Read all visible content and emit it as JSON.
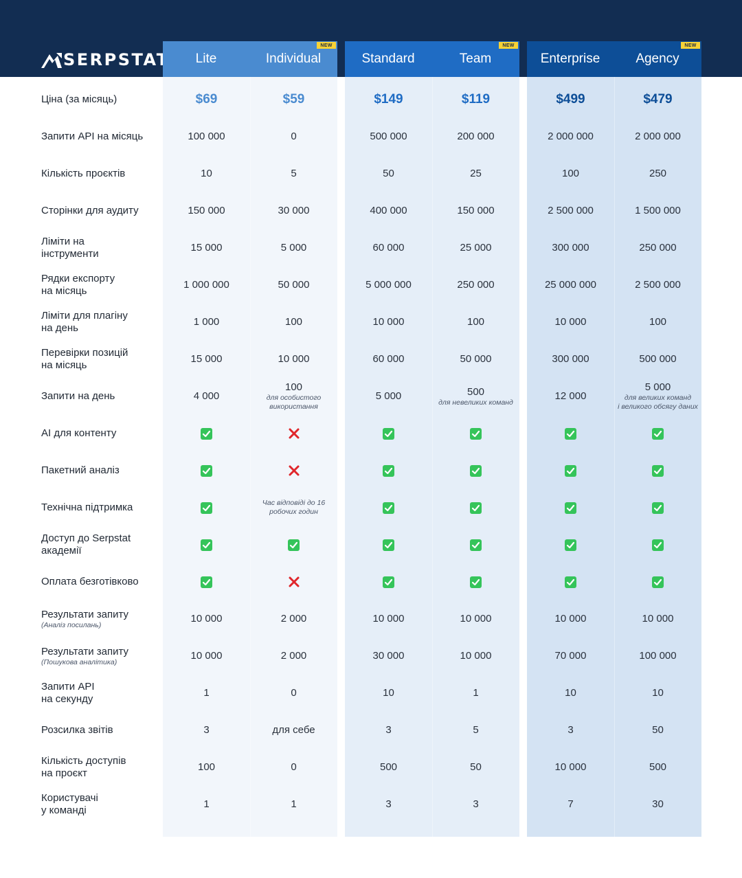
{
  "brand": {
    "name": "SERPSTAT"
  },
  "colors": {
    "header_bg": "#122d52",
    "lite_head": "#4a8bd0",
    "standard_head": "#1f6cc4",
    "enterprise_head": "#0d4e97",
    "price_lite": "#4a8bd0",
    "price_standard": "#1f6cc4",
    "price_enterprise": "#0d4e97",
    "badge": "#f7d235",
    "check": "#35c45a",
    "cross": "#e0262b"
  },
  "plans": [
    {
      "name": "Lite",
      "new": false
    },
    {
      "name": "Individual",
      "new": true
    },
    {
      "name": "Standard",
      "new": false
    },
    {
      "name": "Team",
      "new": true
    },
    {
      "name": "Enterprise",
      "new": false
    },
    {
      "name": "Agency",
      "new": true
    }
  ],
  "badge_label": "NEW",
  "rows": [
    {
      "label": "Ціна (за місяць)",
      "values": [
        "$69",
        "$59",
        "$149",
        "$119",
        "$499",
        "$479"
      ],
      "type": "price"
    },
    {
      "label": "Запити API на місяць",
      "values": [
        "100 000",
        "0",
        "500 000",
        "200 000",
        "2 000 000",
        "2 000 000"
      ]
    },
    {
      "label": "Кількість проєктів",
      "values": [
        "10",
        "5",
        "50",
        "25",
        "100",
        "250"
      ]
    },
    {
      "label": "Сторінки для аудиту",
      "values": [
        "150 000",
        "30 000",
        "400 000",
        "150 000",
        "2 500 000",
        "1 500 000"
      ]
    },
    {
      "label": "Ліміти на\nінструменти",
      "values": [
        "15 000",
        "5 000",
        "60 000",
        "25 000",
        "300 000",
        "250 000"
      ]
    },
    {
      "label": "Рядки експорту\nна місяць",
      "values": [
        "1 000 000",
        "50 000",
        "5 000 000",
        "250 000",
        "25 000 000",
        "2 500 000"
      ]
    },
    {
      "label": "Ліміти для плагіну\nна день",
      "values": [
        "1 000",
        "100",
        "10 000",
        "100",
        "10 000",
        "100"
      ]
    },
    {
      "label": "Перевірки позицій\nна місяць",
      "values": [
        "15 000",
        "10 000",
        "60 000",
        "50 000",
        "300 000",
        "500 000"
      ]
    },
    {
      "label": "Запити на день",
      "values": [
        "4 000",
        "100",
        "5 000",
        "500",
        "12 000",
        "5 000"
      ],
      "notes": [
        "",
        "для особистого\nвикористання",
        "",
        "для невеликих команд",
        "",
        "для великих команд\nі великого обсягу даних"
      ]
    },
    {
      "label": "AI для контенту",
      "values": [
        "yes",
        "no",
        "yes",
        "yes",
        "yes",
        "yes"
      ],
      "type": "bool"
    },
    {
      "label": "Пакетний аналіз",
      "values": [
        "yes",
        "no",
        "yes",
        "yes",
        "yes",
        "yes"
      ],
      "type": "bool"
    },
    {
      "label": "Технічна підтримка",
      "values": [
        "yes",
        "Час відповіді до 16\nробочих годин",
        "yes",
        "yes",
        "yes",
        "yes"
      ],
      "type": "bool"
    },
    {
      "label": "Доступ до Serpstat\nакадемії",
      "values": [
        "yes",
        "yes",
        "yes",
        "yes",
        "yes",
        "yes"
      ],
      "type": "bool"
    },
    {
      "label": "Оплата безготівково",
      "values": [
        "yes",
        "no",
        "yes",
        "yes",
        "yes",
        "yes"
      ],
      "type": "bool"
    },
    {
      "label": "Результати запиту",
      "sublabel": "(Аналіз посилань)",
      "values": [
        "10 000",
        "2 000",
        "10 000",
        "10 000",
        "10 000",
        "10 000"
      ]
    },
    {
      "label": "Результати запиту",
      "sublabel": "(Пошукова аналітика)",
      "values": [
        "10 000",
        "2 000",
        "30 000",
        "10 000",
        "70 000",
        "100 000"
      ]
    },
    {
      "label": "Запити API\nна секунду",
      "values": [
        "1",
        "0",
        "10",
        "1",
        "10",
        "10"
      ]
    },
    {
      "label": "Розсилка звітів",
      "values": [
        "3",
        "для себе",
        "3",
        "5",
        "3",
        "50"
      ]
    },
    {
      "label": "Кількість доступів\nна проєкт",
      "values": [
        "100",
        "0",
        "500",
        "50",
        "10 000",
        "500"
      ]
    },
    {
      "label": "Користувачі\nу команді",
      "values": [
        "1",
        "1",
        "3",
        "3",
        "7",
        "30"
      ]
    }
  ]
}
